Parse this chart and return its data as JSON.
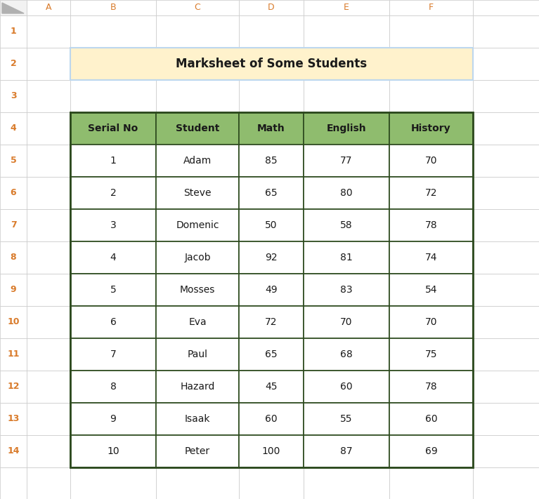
{
  "title": "Marksheet of Some Students",
  "title_bg_color": "#FFF2CC",
  "title_border_color": "#BDD7EE",
  "header_bg_color": "#8FBC6E",
  "header_border_color": "#2D4A1E",
  "cell_bg_color": "#FFFFFF",
  "col_header_bg": "#FFFFFF",
  "col_header_text": "#D97B2B",
  "row_header_bg": "#FFFFFF",
  "row_header_text": "#D97B2B",
  "corner_bg": "#E8E8E8",
  "col_labels": [
    "A",
    "B",
    "C",
    "D",
    "E",
    "F",
    ""
  ],
  "row_labels": [
    "1",
    "2",
    "3",
    "4",
    "5",
    "6",
    "7",
    "8",
    "9",
    "10",
    "11",
    "12",
    "13",
    "14"
  ],
  "headers": [
    "Serial No",
    "Student",
    "Math",
    "English",
    "History"
  ],
  "rows": [
    [
      1,
      "Adam",
      85,
      77,
      70
    ],
    [
      2,
      "Steve",
      65,
      80,
      72
    ],
    [
      3,
      "Domenic",
      50,
      58,
      78
    ],
    [
      4,
      "Jacob",
      92,
      81,
      74
    ],
    [
      5,
      "Mosses",
      49,
      83,
      54
    ],
    [
      6,
      "Eva",
      72,
      70,
      70
    ],
    [
      7,
      "Paul",
      65,
      68,
      75
    ],
    [
      8,
      "Hazard",
      45,
      60,
      78
    ],
    [
      9,
      "Isaak",
      60,
      55,
      60
    ],
    [
      10,
      "Peter",
      100,
      87,
      69
    ]
  ],
  "spreadsheet_bg": "#FFFFFF",
  "grid_line_color": "#C8C8C8",
  "fig_bg_color": "#FFFFFF",
  "col_header_border": "#C8C8C8",
  "row_header_border": "#C8C8C8"
}
